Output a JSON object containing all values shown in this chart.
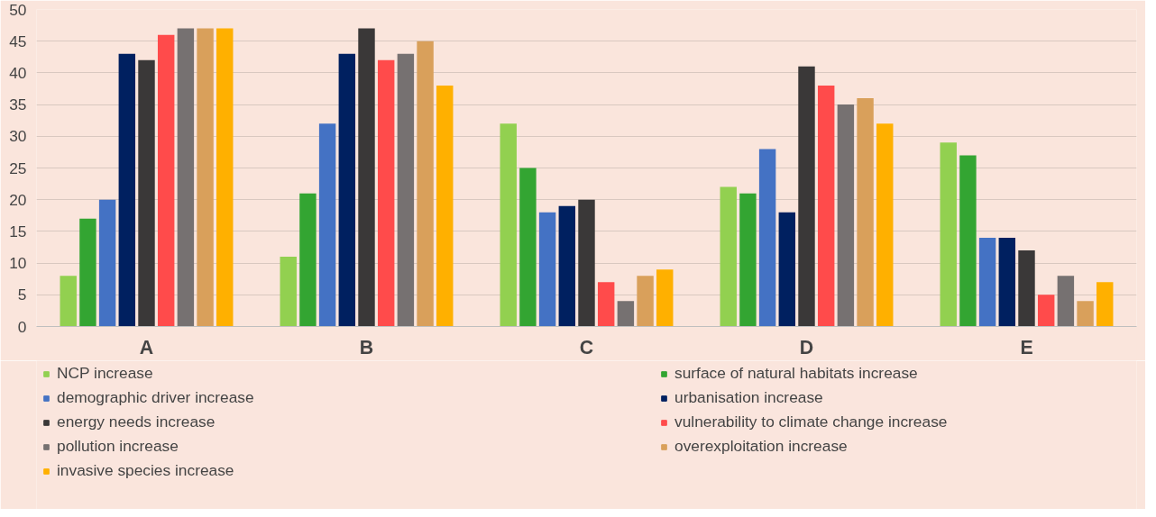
{
  "chart_data": {
    "type": "bar",
    "categories": [
      "A",
      "B",
      "C",
      "D",
      "E"
    ],
    "series": [
      {
        "name": "NCP increase",
        "color": "#92d050",
        "values": [
          8,
          11,
          32,
          22,
          29
        ]
      },
      {
        "name": "surface of natural habitats increase",
        "color": "#33a532",
        "values": [
          17,
          21,
          25,
          21,
          27
        ]
      },
      {
        "name": "demographic driver increase",
        "color": "#4472c4",
        "values": [
          20,
          32,
          18,
          28,
          14
        ]
      },
      {
        "name": "urbanisation increase",
        "color": "#002060",
        "values": [
          43,
          43,
          19,
          18,
          14
        ]
      },
      {
        "name": "energy needs increase",
        "color": "#3a3838",
        "values": [
          42,
          47,
          20,
          41,
          12
        ]
      },
      {
        "name": "vulnerability to climate change increase",
        "color": "#ff4b4b",
        "values": [
          46,
          42,
          7,
          38,
          5
        ]
      },
      {
        "name": "pollution increase",
        "color": "#767171",
        "values": [
          47,
          43,
          4,
          35,
          8
        ]
      },
      {
        "name": "overexploitation increase",
        "color": "#d9a05b",
        "values": [
          47,
          45,
          8,
          36,
          4
        ]
      },
      {
        "name": "invasive species increase",
        "color": "#ffb000",
        "values": [
          47,
          38,
          9,
          32,
          7
        ]
      }
    ],
    "ylim": [
      0,
      50
    ],
    "yticks": [
      0,
      5,
      10,
      15,
      20,
      25,
      30,
      35,
      40,
      45,
      50
    ],
    "grid": "y",
    "legend": "bottom"
  }
}
